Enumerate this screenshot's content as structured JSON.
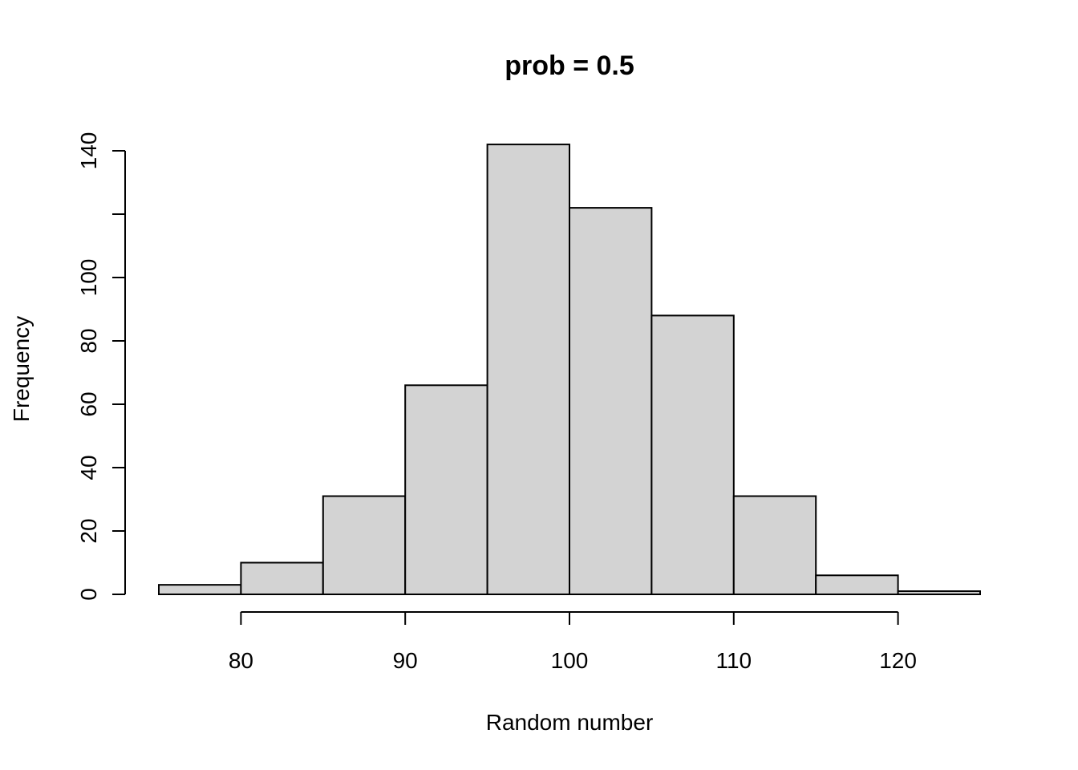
{
  "chart_data": {
    "type": "bar",
    "title": "prob = 0.5",
    "xlabel": "Random number",
    "ylabel": "Frequency",
    "bin_edges": [
      75,
      80,
      85,
      90,
      95,
      100,
      105,
      110,
      115,
      120,
      125
    ],
    "values": [
      3,
      10,
      31,
      66,
      142,
      122,
      88,
      31,
      6,
      1
    ],
    "xlim": [
      75,
      125
    ],
    "ylim": [
      0,
      140
    ],
    "x_ticks": [
      80,
      90,
      100,
      110,
      120
    ],
    "y_ticks": [
      0,
      20,
      40,
      60,
      80,
      100,
      120,
      140
    ],
    "y_tick_labels": [
      "0",
      "20",
      "40",
      "60",
      "80",
      "100",
      "",
      "140"
    ],
    "bar_fill": "#d3d3d3",
    "bar_stroke": "#000000",
    "grid": false,
    "legend": "none"
  }
}
